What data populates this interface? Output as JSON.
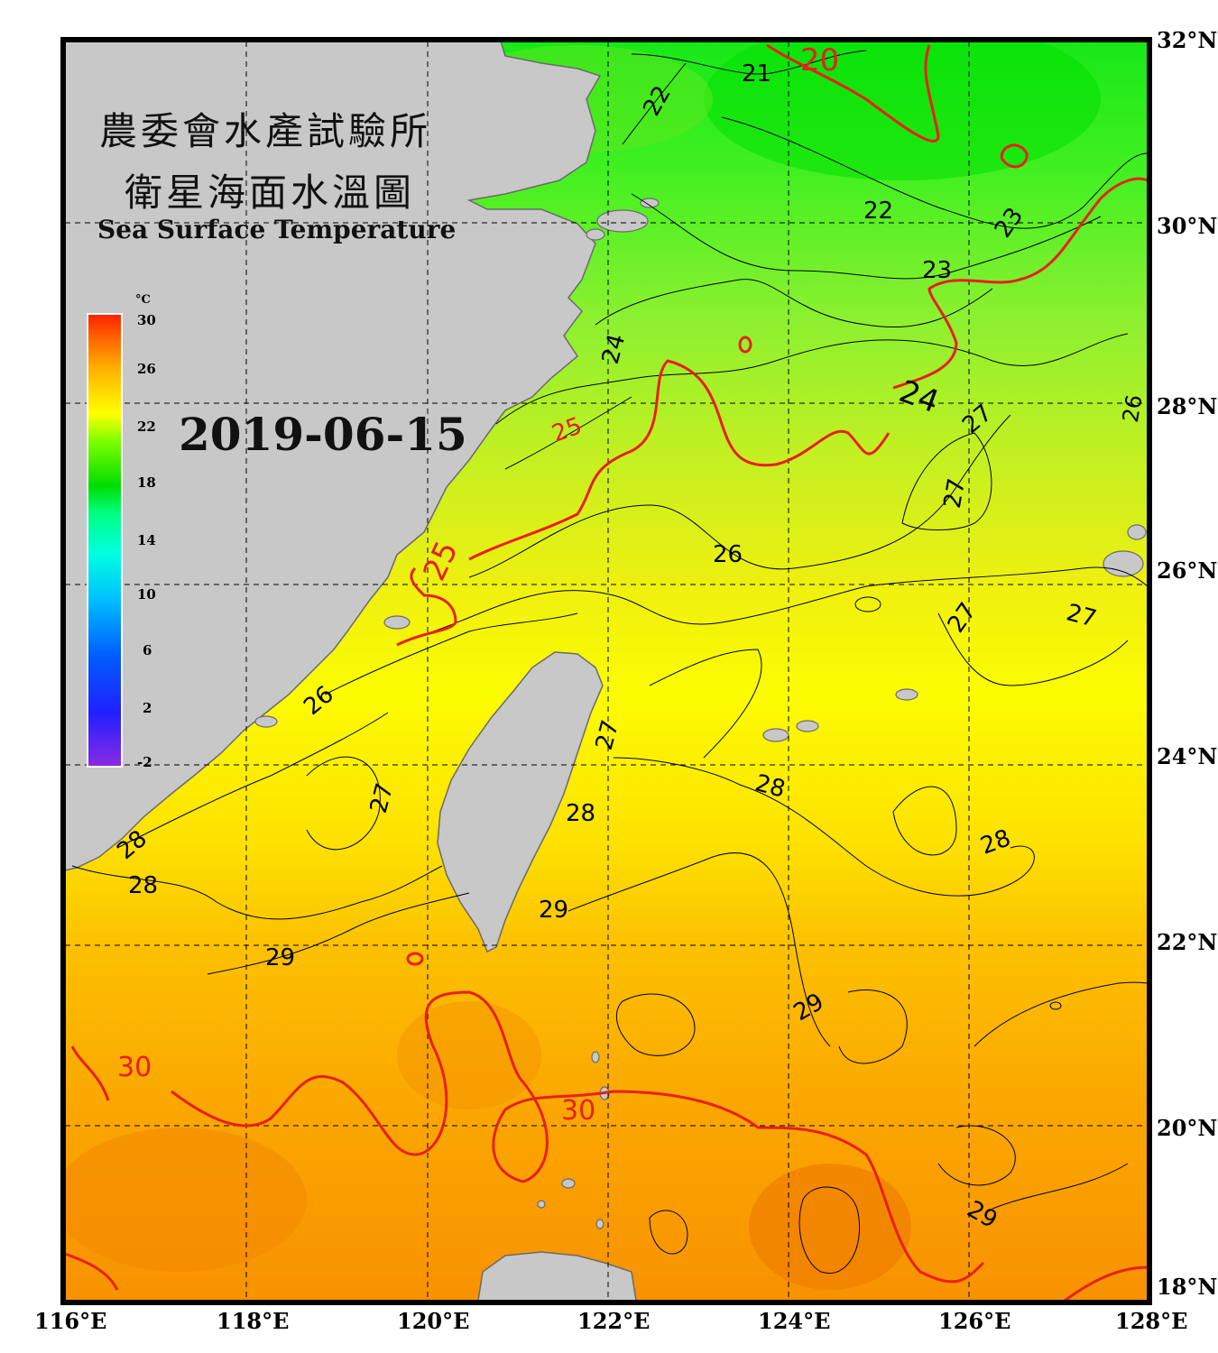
{
  "title": {
    "line1": "農委會水產試驗所",
    "line2": "衛星海面水溫圖",
    "english": "Sea Surface Temperature"
  },
  "date": "2019-06-15",
  "colorbar": {
    "unit": "°C",
    "ticks": [
      "30",
      "26",
      "22",
      "18",
      "14",
      "10",
      "6",
      "2",
      "-2"
    ],
    "min": -2,
    "max": 30,
    "colors": [
      "#8a2be2",
      "#0000ff",
      "#0080ff",
      "#00ffff",
      "#00ff80",
      "#00dd00",
      "#80ff00",
      "#ffff00",
      "#ffb000",
      "#ff6000",
      "#ff2000"
    ]
  },
  "axes": {
    "lon_labels": [
      "116°E",
      "118°E",
      "120°E",
      "122°E",
      "124°E",
      "126°E",
      "128°E"
    ],
    "lat_labels": [
      "32°N",
      "30°N",
      "28°N",
      "26°N",
      "24°N",
      "22°N",
      "20°N",
      "18°N"
    ]
  },
  "contour_labels": [
    {
      "text": "20",
      "color": "#e8201a"
    },
    {
      "text": "21",
      "color": "#000000"
    },
    {
      "text": "22",
      "color": "#000000"
    },
    {
      "text": "22",
      "color": "#000000"
    },
    {
      "text": "23",
      "color": "#000000"
    },
    {
      "text": "23",
      "color": "#000000"
    },
    {
      "text": "24",
      "color": "#000000"
    },
    {
      "text": "24",
      "color": "#000000"
    },
    {
      "text": "25",
      "color": "#e8201a"
    },
    {
      "text": "25",
      "color": "#e8201a"
    },
    {
      "text": "26",
      "color": "#000000"
    },
    {
      "text": "26",
      "color": "#000000"
    },
    {
      "text": "26",
      "color": "#000000"
    },
    {
      "text": "27",
      "color": "#000000"
    },
    {
      "text": "27",
      "color": "#000000"
    },
    {
      "text": "27",
      "color": "#000000"
    },
    {
      "text": "27",
      "color": "#000000"
    },
    {
      "text": "27",
      "color": "#000000"
    },
    {
      "text": "27",
      "color": "#000000"
    },
    {
      "text": "28",
      "color": "#000000"
    },
    {
      "text": "28",
      "color": "#000000"
    },
    {
      "text": "28",
      "color": "#000000"
    },
    {
      "text": "28",
      "color": "#000000"
    },
    {
      "text": "28",
      "color": "#000000"
    },
    {
      "text": "29",
      "color": "#000000"
    },
    {
      "text": "29",
      "color": "#000000"
    },
    {
      "text": "29",
      "color": "#000000"
    },
    {
      "text": "29",
      "color": "#000000"
    },
    {
      "text": "30",
      "color": "#e8201a"
    },
    {
      "text": "30",
      "color": "#e8201a"
    }
  ]
}
